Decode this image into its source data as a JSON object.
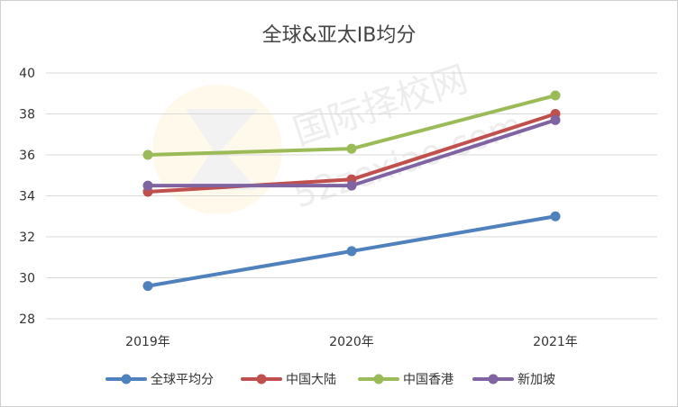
{
  "chart_data": {
    "type": "line",
    "title": "全球&亚太IB均分",
    "categories": [
      "2019年",
      "2020年",
      "2021年"
    ],
    "ylim": [
      28,
      40
    ],
    "yticks": [
      28,
      30,
      32,
      34,
      36,
      38,
      40
    ],
    "grid": true,
    "legend_position": "bottom",
    "series": [
      {
        "name": "全球平均分",
        "color": "#4f81bd",
        "values": [
          29.6,
          31.3,
          33.0
        ]
      },
      {
        "name": "中国大陆",
        "color": "#c0504d",
        "values": [
          34.2,
          34.8,
          38.0
        ]
      },
      {
        "name": "中国香港",
        "color": "#9bbb59",
        "values": [
          36.0,
          36.3,
          38.9
        ]
      },
      {
        "name": "新加坡",
        "color": "#8064a2",
        "values": [
          34.5,
          34.5,
          37.7
        ]
      }
    ]
  },
  "watermark": {
    "line1": "国际择校网",
    "line2": "52zexiao.com"
  }
}
